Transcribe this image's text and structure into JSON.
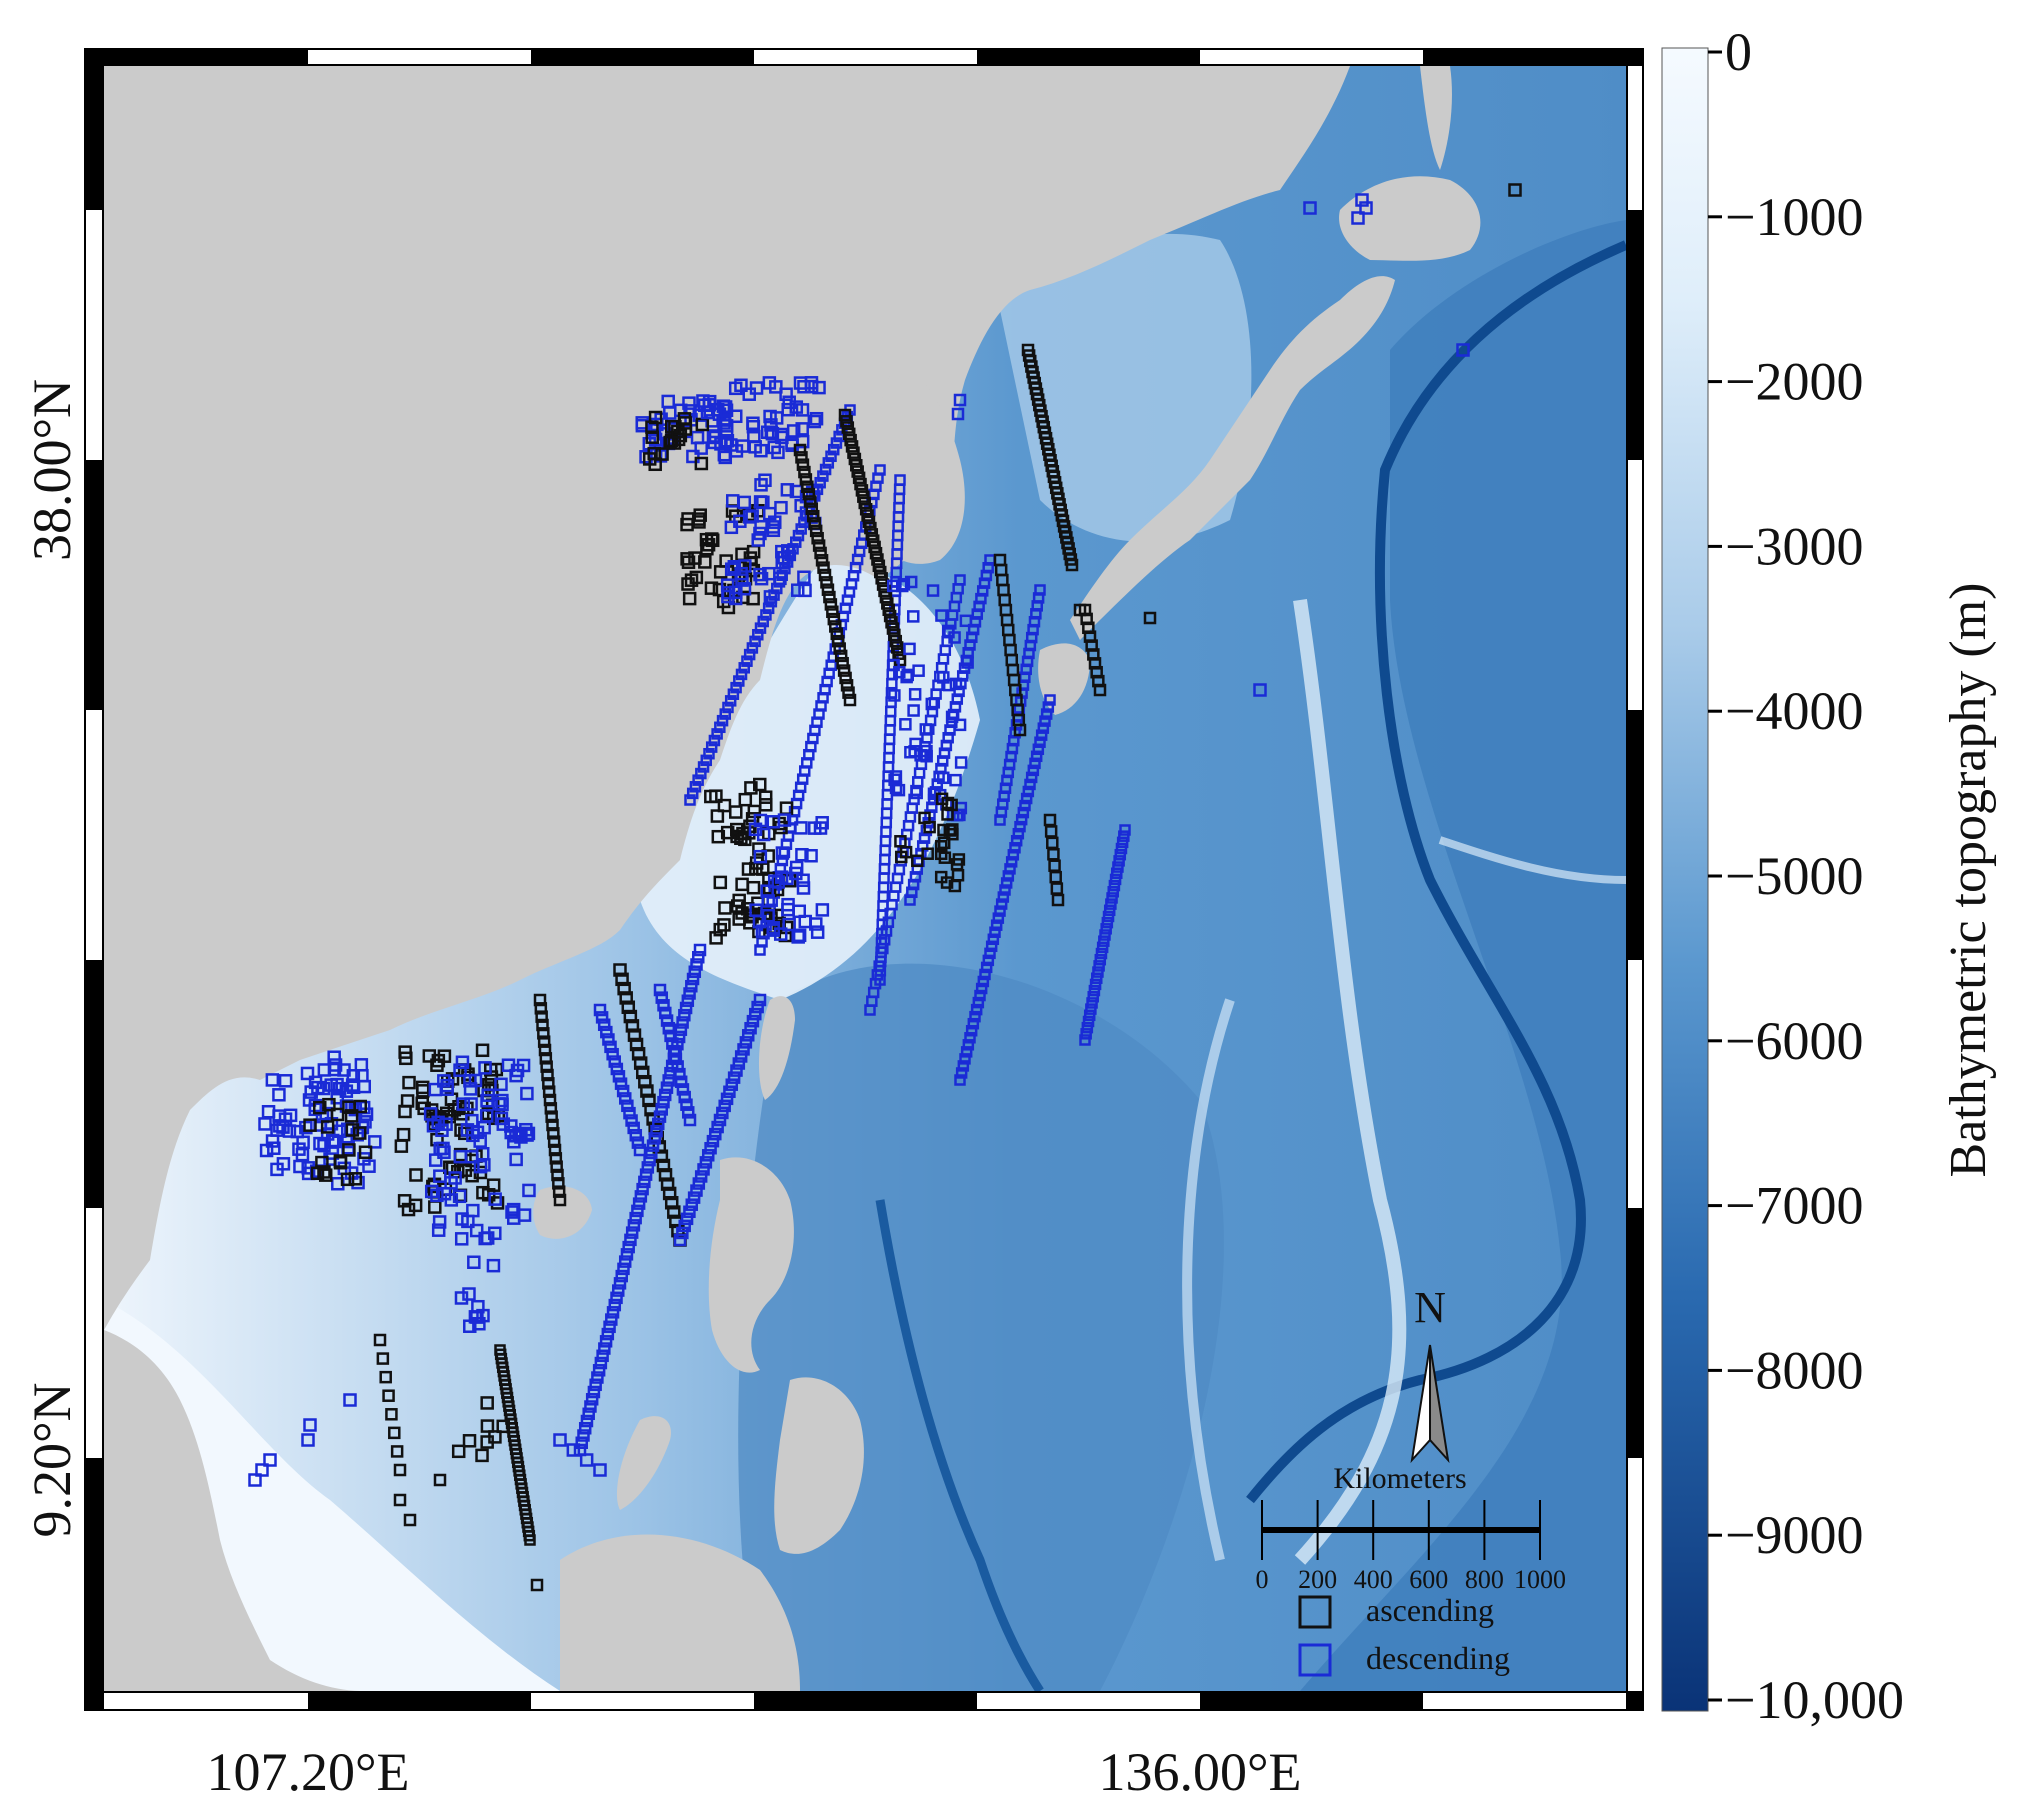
{
  "map": {
    "lat_labels": [
      "38.00°N",
      "9.20°N"
    ],
    "lon_labels": [
      "107.20°E",
      "136.00°E"
    ]
  },
  "colorbar": {
    "title": "Bathymetric topography (m)",
    "ticks": [
      "0",
      "−1000",
      "−2000",
      "−3000",
      "−4000",
      "−5000",
      "−6000",
      "−7000",
      "−8000",
      "−9000",
      "−10,000"
    ],
    "colors": {
      "shallow": "#f4f9ff",
      "mid": "#6aa3d3",
      "deep": "#0a3377"
    }
  },
  "north_arrow": {
    "label": "N"
  },
  "scale_bar": {
    "title": "Kilometers",
    "ticks": [
      "0",
      "200",
      "400",
      "600",
      "800",
      "1000"
    ]
  },
  "legend": {
    "items": [
      {
        "label": "ascending",
        "color": "#111111"
      },
      {
        "label": "descending",
        "color": "#1a2bd6"
      }
    ]
  },
  "colors": {
    "land": "#cbcbcb",
    "ascending": "#111111",
    "descending": "#1a2bd6"
  }
}
